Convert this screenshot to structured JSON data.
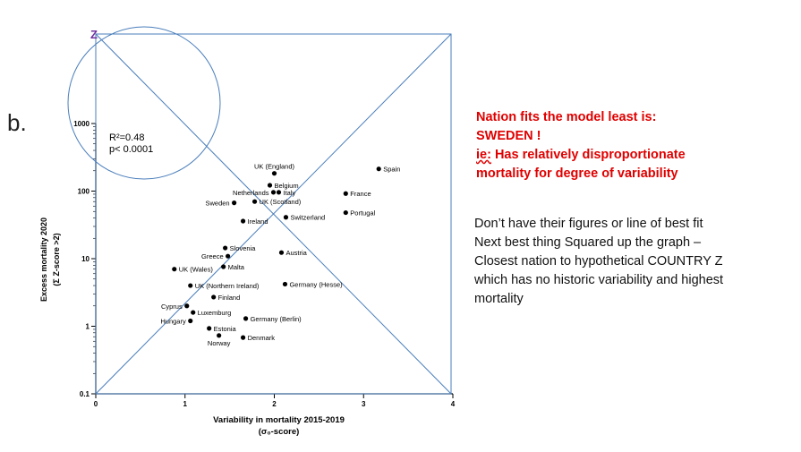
{
  "panel_label": "b.",
  "annotation": {
    "line1": "Nation fits the model least is:",
    "line2": "SWEDEN !",
    "line3_prefix": "ie:",
    "line3_rest": " Has relatively disproportionate",
    "line4": "mortality for degree of variability"
  },
  "commentary": [
    "Don’t have their figures or line of best fit",
    "Next best thing Squared up the graph –",
    "Closest nation to hypothetical COUNTRY Z",
    "which has no historic variability and highest",
    "mortality"
  ],
  "overlay": {
    "z_label": "Z",
    "line_color": "#4a7ebb",
    "z_color": "#7030a0"
  },
  "colors": {
    "annotation": "#e00000",
    "marker": "#000000"
  },
  "chart_data": {
    "type": "scatter",
    "xlabel": "Variability in mortality 2015-2019",
    "xlabel_line2": "(σ₀-score)",
    "ylabel": "Excess mortality 2020",
    "ylabel_line2": "(Σ Z-score >2)",
    "xlim": [
      0,
      4
    ],
    "ylim": [
      0.1,
      1000
    ],
    "y_scale": "log",
    "x_ticks": [
      0,
      1,
      2,
      3,
      4
    ],
    "x_tick_labels": [
      "0",
      "1",
      "2",
      "3",
      "4"
    ],
    "y_ticks": [
      0.1,
      1,
      10,
      100,
      1000
    ],
    "y_tick_labels": [
      "0.1",
      "1",
      "10",
      "100",
      "1000"
    ],
    "stats": {
      "r2": "R²=0.48",
      "p": "p< 0.0001"
    },
    "points": [
      {
        "name": "UK (England)",
        "x": 2.0,
        "y": 183,
        "label_pos": "top"
      },
      {
        "name": "Spain",
        "x": 3.17,
        "y": 213,
        "label_pos": "right"
      },
      {
        "name": "Belgium",
        "x": 1.95,
        "y": 122,
        "label_pos": "right"
      },
      {
        "name": "Netherlands",
        "x": 1.99,
        "y": 96,
        "label_pos": "left"
      },
      {
        "name": "Italy",
        "x": 2.05,
        "y": 96,
        "label_pos": "right"
      },
      {
        "name": "France",
        "x": 2.8,
        "y": 92,
        "label_pos": "right"
      },
      {
        "name": "Sweden",
        "x": 1.55,
        "y": 67,
        "label_pos": "left"
      },
      {
        "name": "UK (Scotland)",
        "x": 1.78,
        "y": 70,
        "label_pos": "right"
      },
      {
        "name": "Portugal",
        "x": 2.8,
        "y": 48,
        "label_pos": "right"
      },
      {
        "name": "Switzerland",
        "x": 2.13,
        "y": 41,
        "label_pos": "right"
      },
      {
        "name": "Ireland",
        "x": 1.65,
        "y": 36,
        "label_pos": "right"
      },
      {
        "name": "Slovenia",
        "x": 1.45,
        "y": 14.4,
        "label_pos": "right"
      },
      {
        "name": "Austria",
        "x": 2.08,
        "y": 12.3,
        "label_pos": "right"
      },
      {
        "name": "Greece",
        "x": 1.48,
        "y": 10.9,
        "label_pos": "left"
      },
      {
        "name": "UK (Wales)",
        "x": 0.88,
        "y": 7.0,
        "label_pos": "right"
      },
      {
        "name": "Malta",
        "x": 1.43,
        "y": 7.6,
        "label_pos": "right"
      },
      {
        "name": "UK (Northern Ireland)",
        "x": 1.06,
        "y": 4.0,
        "label_pos": "right"
      },
      {
        "name": "Germany (Hesse)",
        "x": 2.12,
        "y": 4.2,
        "label_pos": "right"
      },
      {
        "name": "Finland",
        "x": 1.32,
        "y": 2.7,
        "label_pos": "right"
      },
      {
        "name": "Cyprus",
        "x": 1.02,
        "y": 2.0,
        "label_pos": "left"
      },
      {
        "name": "Luxemburg",
        "x": 1.09,
        "y": 1.6,
        "label_pos": "right"
      },
      {
        "name": "Hungary",
        "x": 1.06,
        "y": 1.2,
        "label_pos": "left"
      },
      {
        "name": "Germany (Berlin)",
        "x": 1.68,
        "y": 1.3,
        "label_pos": "right"
      },
      {
        "name": "Estonia",
        "x": 1.27,
        "y": 0.93,
        "label_pos": "right"
      },
      {
        "name": "Norway",
        "x": 1.38,
        "y": 0.73,
        "label_pos": "bottom"
      },
      {
        "name": "Denmark",
        "x": 1.65,
        "y": 0.68,
        "label_pos": "right"
      }
    ]
  }
}
